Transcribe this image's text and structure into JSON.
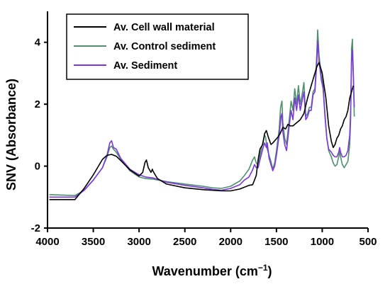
{
  "chart_data": {
    "type": "line",
    "xlabel": "Wavenumber (cm",
    "xlabel_sup": "−1",
    "xlabel_close": ")",
    "ylabel": "SNV (Absorbance)",
    "xlim": [
      4000,
      500
    ],
    "ylim": [
      -2,
      5
    ],
    "x_ticks": [
      4000,
      3500,
      3000,
      2500,
      2000,
      1500,
      1000,
      500
    ],
    "x_tick_labels": [
      "4000",
      "3500",
      "3000",
      "2500",
      "2000",
      "1500",
      "1000",
      "500"
    ],
    "y_ticks": [
      -2,
      0,
      2,
      4
    ],
    "y_tick_labels": [
      "-2",
      "0",
      "2",
      "4"
    ],
    "grid": false,
    "legend_position": "top-center",
    "series": [
      {
        "name": "Av. Cell wall material",
        "color": "#000000",
        "points": [
          [
            3980,
            -1.08
          ],
          [
            3700,
            -1.08
          ],
          [
            3600,
            -0.72
          ],
          [
            3500,
            -0.28
          ],
          [
            3400,
            0.22
          ],
          [
            3350,
            0.35
          ],
          [
            3300,
            0.38
          ],
          [
            3250,
            0.32
          ],
          [
            3200,
            0.18
          ],
          [
            3100,
            -0.12
          ],
          [
            3000,
            -0.32
          ],
          [
            2960,
            -0.2
          ],
          [
            2935,
            0.12
          ],
          [
            2920,
            0.2
          ],
          [
            2900,
            -0.05
          ],
          [
            2870,
            -0.2
          ],
          [
            2855,
            -0.1
          ],
          [
            2850,
            -0.15
          ],
          [
            2800,
            -0.4
          ],
          [
            2700,
            -0.58
          ],
          [
            2500,
            -0.7
          ],
          [
            2300,
            -0.76
          ],
          [
            2100,
            -0.8
          ],
          [
            2000,
            -0.8
          ],
          [
            1900,
            -0.74
          ],
          [
            1800,
            -0.62
          ],
          [
            1760,
            -0.6
          ],
          [
            1740,
            -0.45
          ],
          [
            1720,
            -0.3
          ],
          [
            1700,
            0.2
          ],
          [
            1680,
            0.55
          ],
          [
            1650,
            0.7
          ],
          [
            1630,
            1.05
          ],
          [
            1610,
            1.15
          ],
          [
            1590,
            0.95
          ],
          [
            1560,
            0.7
          ],
          [
            1540,
            0.75
          ],
          [
            1510,
            0.85
          ],
          [
            1480,
            0.95
          ],
          [
            1460,
            1.05
          ],
          [
            1430,
            1.25
          ],
          [
            1400,
            1.2
          ],
          [
            1375,
            1.35
          ],
          [
            1350,
            1.3
          ],
          [
            1320,
            1.3
          ],
          [
            1280,
            1.4
          ],
          [
            1240,
            1.5
          ],
          [
            1200,
            1.7
          ],
          [
            1160,
            2.2
          ],
          [
            1120,
            2.6
          ],
          [
            1080,
            3.0
          ],
          [
            1060,
            3.2
          ],
          [
            1035,
            3.35
          ],
          [
            1000,
            3.0
          ],
          [
            960,
            2.2
          ],
          [
            930,
            1.3
          ],
          [
            900,
            0.8
          ],
          [
            880,
            0.6
          ],
          [
            860,
            0.7
          ],
          [
            840,
            0.9
          ],
          [
            820,
            1.0
          ],
          [
            800,
            1.2
          ],
          [
            780,
            1.3
          ],
          [
            760,
            1.5
          ],
          [
            740,
            1.6
          ],
          [
            720,
            1.8
          ],
          [
            700,
            2.2
          ],
          [
            680,
            2.4
          ],
          [
            660,
            2.6
          ]
        ]
      },
      {
        "name": "Av. Control sediment",
        "color": "#4f8f6c",
        "points": [
          [
            3980,
            -0.92
          ],
          [
            3700,
            -0.95
          ],
          [
            3600,
            -0.78
          ],
          [
            3500,
            -0.45
          ],
          [
            3400,
            -0.05
          ],
          [
            3350,
            0.3
          ],
          [
            3320,
            0.6
          ],
          [
            3300,
            0.65
          ],
          [
            3280,
            0.55
          ],
          [
            3250,
            0.45
          ],
          [
            3200,
            0.22
          ],
          [
            3100,
            -0.15
          ],
          [
            3000,
            -0.35
          ],
          [
            2930,
            -0.4
          ],
          [
            2850,
            -0.42
          ],
          [
            2700,
            -0.5
          ],
          [
            2500,
            -0.58
          ],
          [
            2300,
            -0.65
          ],
          [
            2200,
            -0.7
          ],
          [
            2100,
            -0.72
          ],
          [
            2000,
            -0.65
          ],
          [
            1900,
            -0.48
          ],
          [
            1850,
            -0.3
          ],
          [
            1800,
            -0.1
          ],
          [
            1760,
            0.2
          ],
          [
            1740,
            0.3
          ],
          [
            1720,
            0.1
          ],
          [
            1700,
            0.05
          ],
          [
            1680,
            0.35
          ],
          [
            1650,
            0.75
          ],
          [
            1630,
            1.0
          ],
          [
            1620,
            0.95
          ],
          [
            1600,
            0.55
          ],
          [
            1580,
            0.35
          ],
          [
            1560,
            0.15
          ],
          [
            1540,
            -0.1
          ],
          [
            1520,
            0.1
          ],
          [
            1500,
            0.5
          ],
          [
            1470,
            1.2
          ],
          [
            1455,
            1.9
          ],
          [
            1440,
            2.1
          ],
          [
            1430,
            1.4
          ],
          [
            1410,
            0.9
          ],
          [
            1390,
            0.7
          ],
          [
            1375,
            1.1
          ],
          [
            1360,
            1.5
          ],
          [
            1340,
            2.1
          ],
          [
            1320,
            1.8
          ],
          [
            1300,
            2.5
          ],
          [
            1280,
            2.0
          ],
          [
            1260,
            2.6
          ],
          [
            1240,
            2.0
          ],
          [
            1220,
            2.3
          ],
          [
            1200,
            2.7
          ],
          [
            1180,
            1.6
          ],
          [
            1160,
            1.7
          ],
          [
            1140,
            1.9
          ],
          [
            1120,
            1.9
          ],
          [
            1100,
            2.4
          ],
          [
            1080,
            2.5
          ],
          [
            1060,
            3.6
          ],
          [
            1050,
            4.4
          ],
          [
            1035,
            3.6
          ],
          [
            1010,
            2.9
          ],
          [
            990,
            2.6
          ],
          [
            970,
            1.7
          ],
          [
            950,
            0.9
          ],
          [
            930,
            0.5
          ],
          [
            900,
            0.3
          ],
          [
            880,
            0.1
          ],
          [
            860,
            0.0
          ],
          [
            840,
            0.05
          ],
          [
            820,
            0.3
          ],
          [
            810,
            0.5
          ],
          [
            800,
            0.3
          ],
          [
            780,
            0.05
          ],
          [
            760,
            -0.05
          ],
          [
            740,
            0.05
          ],
          [
            720,
            0.15
          ],
          [
            700,
            0.7
          ],
          [
            690,
            1.5
          ],
          [
            680,
            3.8
          ],
          [
            670,
            4.1
          ],
          [
            660,
            3.0
          ],
          [
            650,
            1.6
          ]
        ]
      },
      {
        "name": "Av. Sediment",
        "color": "#7b3ad8",
        "points": [
          [
            3980,
            -1.0
          ],
          [
            3700,
            -1.0
          ],
          [
            3600,
            -0.78
          ],
          [
            3500,
            -0.45
          ],
          [
            3400,
            -0.05
          ],
          [
            3350,
            0.35
          ],
          [
            3320,
            0.75
          ],
          [
            3300,
            0.82
          ],
          [
            3280,
            0.6
          ],
          [
            3250,
            0.55
          ],
          [
            3200,
            0.25
          ],
          [
            3100,
            -0.1
          ],
          [
            3000,
            -0.28
          ],
          [
            2930,
            -0.35
          ],
          [
            2850,
            -0.38
          ],
          [
            2700,
            -0.52
          ],
          [
            2500,
            -0.62
          ],
          [
            2300,
            -0.7
          ],
          [
            2200,
            -0.75
          ],
          [
            2100,
            -0.78
          ],
          [
            2000,
            -0.72
          ],
          [
            1900,
            -0.6
          ],
          [
            1850,
            -0.45
          ],
          [
            1800,
            -0.35
          ],
          [
            1760,
            -0.12
          ],
          [
            1740,
            0.05
          ],
          [
            1720,
            -0.05
          ],
          [
            1700,
            -0.05
          ],
          [
            1680,
            0.2
          ],
          [
            1650,
            0.55
          ],
          [
            1630,
            0.75
          ],
          [
            1610,
            0.6
          ],
          [
            1600,
            0.75
          ],
          [
            1580,
            0.25
          ],
          [
            1560,
            0.05
          ],
          [
            1540,
            -0.15
          ],
          [
            1520,
            0.0
          ],
          [
            1500,
            0.35
          ],
          [
            1470,
            1.0
          ],
          [
            1450,
            1.6
          ],
          [
            1440,
            1.7
          ],
          [
            1430,
            1.1
          ],
          [
            1410,
            0.7
          ],
          [
            1390,
            0.5
          ],
          [
            1375,
            0.9
          ],
          [
            1360,
            1.3
          ],
          [
            1340,
            1.8
          ],
          [
            1320,
            1.5
          ],
          [
            1300,
            2.2
          ],
          [
            1280,
            1.8
          ],
          [
            1260,
            2.3
          ],
          [
            1240,
            1.8
          ],
          [
            1220,
            2.1
          ],
          [
            1200,
            2.4
          ],
          [
            1180,
            1.5
          ],
          [
            1160,
            1.6
          ],
          [
            1140,
            1.8
          ],
          [
            1120,
            1.8
          ],
          [
            1100,
            2.3
          ],
          [
            1080,
            2.4
          ],
          [
            1060,
            3.3
          ],
          [
            1050,
            4.05
          ],
          [
            1035,
            3.4
          ],
          [
            1010,
            2.8
          ],
          [
            990,
            2.5
          ],
          [
            970,
            1.6
          ],
          [
            950,
            0.9
          ],
          [
            930,
            0.55
          ],
          [
            900,
            0.45
          ],
          [
            880,
            0.35
          ],
          [
            860,
            0.3
          ],
          [
            840,
            0.3
          ],
          [
            820,
            0.45
          ],
          [
            810,
            0.6
          ],
          [
            800,
            0.45
          ],
          [
            780,
            0.3
          ],
          [
            760,
            0.3
          ],
          [
            740,
            0.35
          ],
          [
            720,
            0.5
          ],
          [
            700,
            1.0
          ],
          [
            690,
            1.8
          ],
          [
            680,
            3.4
          ],
          [
            670,
            3.75
          ],
          [
            660,
            2.9
          ],
          [
            650,
            1.9
          ]
        ]
      }
    ]
  }
}
